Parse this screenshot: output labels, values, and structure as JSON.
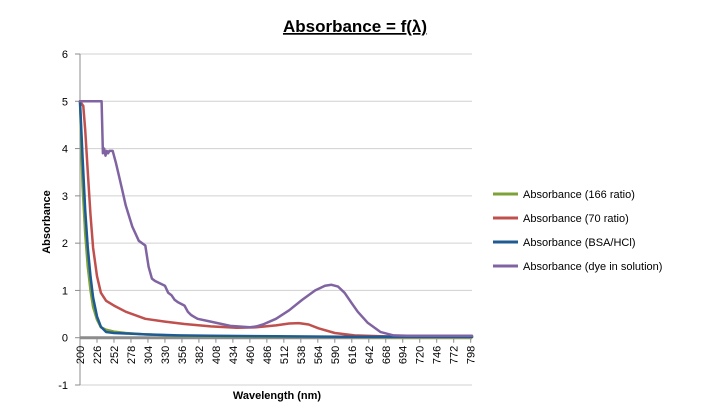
{
  "chart_data": {
    "type": "line",
    "title": "Absorbance = f(λ)",
    "xlabel": "Wavelength (nm)",
    "ylabel": "Absorbance",
    "xlim": [
      200,
      800
    ],
    "ylim": [
      -1,
      6
    ],
    "x_ticks": [
      "200",
      "226",
      "252",
      "278",
      "304",
      "330",
      "356",
      "382",
      "408",
      "434",
      "460",
      "486",
      "512",
      "538",
      "564",
      "590",
      "616",
      "642",
      "668",
      "694",
      "720",
      "746",
      "772",
      "798"
    ],
    "y_ticks": [
      "-1",
      "0",
      "1",
      "2",
      "3",
      "4",
      "5",
      "6"
    ],
    "grid": "horizontal",
    "legend_position": "right",
    "series": [
      {
        "name": "Absorbance (166 ratio)",
        "color": "#7ea238",
        "x": [
          200,
          204,
          208,
          212,
          216,
          220,
          226,
          232,
          240,
          252,
          270,
          300,
          350,
          400,
          500,
          600,
          700,
          800
        ],
        "y": [
          5.0,
          3.2,
          2.2,
          1.5,
          1.0,
          0.65,
          0.38,
          0.22,
          0.17,
          0.13,
          0.1,
          0.07,
          0.04,
          0.03,
          0.02,
          0.02,
          0.01,
          0.01
        ]
      },
      {
        "name": "Absorbance (70 ratio)",
        "color": "#c0504d",
        "x": [
          200,
          205,
          208,
          212,
          216,
          220,
          226,
          232,
          240,
          252,
          270,
          300,
          330,
          360,
          400,
          440,
          470,
          500,
          520,
          535,
          550,
          565,
          590,
          620,
          660,
          700,
          800
        ],
        "y": [
          5.0,
          4.9,
          4.4,
          3.5,
          2.6,
          1.9,
          1.3,
          0.95,
          0.78,
          0.68,
          0.55,
          0.4,
          0.34,
          0.29,
          0.24,
          0.21,
          0.22,
          0.26,
          0.3,
          0.31,
          0.28,
          0.2,
          0.1,
          0.05,
          0.03,
          0.02,
          0.02
        ]
      },
      {
        "name": "Absorbance (BSA/HCl)",
        "color": "#1f5a93",
        "x": [
          200,
          204,
          208,
          212,
          216,
          220,
          226,
          232,
          240,
          252,
          270,
          300,
          350,
          400,
          500,
          600,
          700,
          800
        ],
        "y": [
          5.0,
          3.8,
          2.7,
          1.9,
          1.3,
          0.85,
          0.45,
          0.23,
          0.12,
          0.1,
          0.09,
          0.07,
          0.05,
          0.04,
          0.03,
          0.02,
          0.02,
          0.02
        ]
      },
      {
        "name": "Absorbance (dye in solution)",
        "color": "#8064a2",
        "x": [
          200,
          205,
          210,
          215,
          220,
          225,
          233,
          235,
          237,
          239,
          241,
          243,
          245,
          250,
          255,
          260,
          265,
          270,
          280,
          290,
          300,
          305,
          310,
          315,
          330,
          335,
          340,
          345,
          350,
          360,
          365,
          370,
          375,
          380,
          400,
          430,
          460,
          470,
          480,
          500,
          520,
          540,
          560,
          575,
          585,
          595,
          605,
          615,
          625,
          640,
          660,
          680,
          700,
          750,
          800
        ],
        "y": [
          5.0,
          5.0,
          5.0,
          5.0,
          5.0,
          5.0,
          5.0,
          3.9,
          4.0,
          3.85,
          3.95,
          3.9,
          3.95,
          3.95,
          3.7,
          3.4,
          3.1,
          2.8,
          2.35,
          2.05,
          1.95,
          1.5,
          1.25,
          1.2,
          1.1,
          0.95,
          0.9,
          0.8,
          0.75,
          0.68,
          0.55,
          0.48,
          0.44,
          0.4,
          0.34,
          0.25,
          0.22,
          0.24,
          0.28,
          0.4,
          0.58,
          0.8,
          1.0,
          1.1,
          1.12,
          1.08,
          0.95,
          0.75,
          0.55,
          0.32,
          0.12,
          0.05,
          0.04,
          0.04,
          0.04
        ]
      }
    ]
  }
}
